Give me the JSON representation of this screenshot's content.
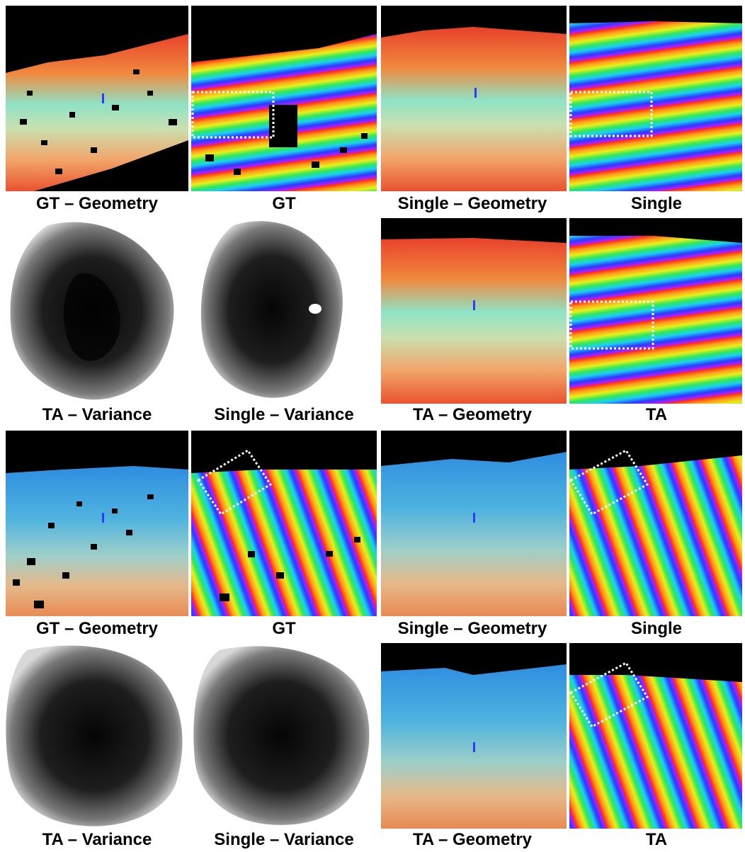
{
  "figure": {
    "block_a": {
      "row1": {
        "gt_geometry": "GT – Geometry",
        "gt": "GT",
        "single_geometry": "Single – Geometry",
        "single": "Single"
      },
      "row2": {
        "ta_variance": "TA – Variance",
        "single_variance": "Single – Variance",
        "ta_geometry": "TA – Geometry",
        "ta": "TA"
      }
    },
    "block_b": {
      "row1": {
        "gt_geometry": "GT – Geometry",
        "gt": "GT",
        "single_geometry": "Single – Geometry",
        "single": "Single"
      },
      "row2": {
        "ta_variance": "TA – Variance",
        "single_variance": "Single – Variance",
        "ta_geometry": "TA – Geometry",
        "ta": "TA"
      }
    }
  },
  "colors": {
    "highlight_box": "#ffffff",
    "axis_marker": "#2a3cff",
    "background_sky": "#000000"
  }
}
